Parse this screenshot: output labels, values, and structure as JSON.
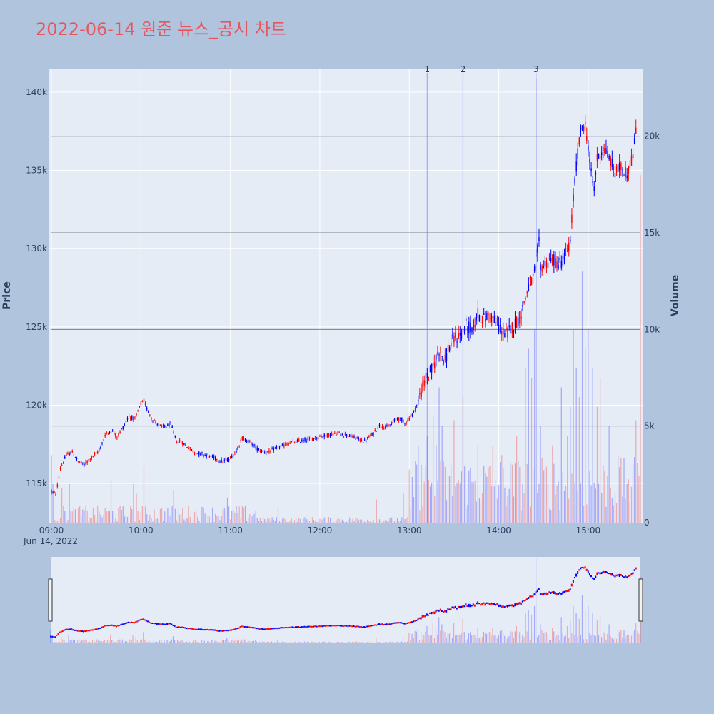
{
  "chart_data": {
    "type": "candlestick",
    "title": "2022-06-14 원준 뉴스_공시 차트",
    "date_label": "Jun 14, 2022",
    "ylabel": "Price",
    "y2label": "Volume",
    "ylim": [
      112500,
      141500
    ],
    "y2lim": [
      0,
      23500
    ],
    "y_ticks": [
      115000,
      120000,
      125000,
      130000,
      135000,
      140000
    ],
    "y_tick_labels": [
      "115k",
      "120k",
      "125k",
      "130k",
      "135k",
      "140k"
    ],
    "y2_ticks": [
      0,
      5000,
      10000,
      15000,
      20000
    ],
    "y2_tick_labels": [
      "0",
      "5k",
      "10k",
      "15k",
      "20k"
    ],
    "x_range_minutes": [
      0,
      395
    ],
    "x_ticks": [
      0,
      60,
      120,
      180,
      240,
      300,
      360
    ],
    "x_tick_labels": [
      "09:00",
      "10:00",
      "11:00",
      "12:00",
      "13:00",
      "14:00",
      "15:00"
    ],
    "horizontal_levels_volume": [
      5000,
      10000,
      15000,
      20000
    ],
    "increasing_color": "#ff0000",
    "decreasing_color": "#0000ff",
    "news_markers": [
      {
        "label": "1",
        "minute": 252
      },
      {
        "label": "2",
        "minute": 276
      },
      {
        "label": "3",
        "minute": 325
      }
    ],
    "price_path": [
      [
        0,
        114500
      ],
      [
        3,
        114300
      ],
      [
        6,
        116000
      ],
      [
        10,
        116800
      ],
      [
        14,
        117000
      ],
      [
        18,
        116400
      ],
      [
        22,
        116200
      ],
      [
        26,
        116600
      ],
      [
        30,
        116900
      ],
      [
        33,
        117300
      ],
      [
        36,
        118100
      ],
      [
        40,
        118400
      ],
      [
        44,
        118000
      ],
      [
        48,
        118600
      ],
      [
        52,
        119300
      ],
      [
        56,
        119100
      ],
      [
        60,
        120100
      ],
      [
        62,
        120300
      ],
      [
        64,
        119800
      ],
      [
        67,
        119200
      ],
      [
        70,
        118900
      ],
      [
        74,
        118600
      ],
      [
        78,
        118700
      ],
      [
        80,
        118800
      ],
      [
        84,
        117700
      ],
      [
        88,
        117600
      ],
      [
        92,
        117300
      ],
      [
        96,
        117000
      ],
      [
        100,
        116900
      ],
      [
        105,
        116800
      ],
      [
        110,
        116600
      ],
      [
        115,
        116400
      ],
      [
        120,
        116600
      ],
      [
        124,
        117100
      ],
      [
        128,
        117900
      ],
      [
        132,
        117700
      ],
      [
        136,
        117400
      ],
      [
        140,
        117100
      ],
      [
        146,
        117000
      ],
      [
        152,
        117300
      ],
      [
        160,
        117600
      ],
      [
        166,
        117700
      ],
      [
        172,
        117800
      ],
      [
        180,
        118000
      ],
      [
        186,
        118100
      ],
      [
        192,
        118200
      ],
      [
        198,
        118100
      ],
      [
        204,
        117900
      ],
      [
        210,
        117700
      ],
      [
        216,
        118200
      ],
      [
        220,
        118700
      ],
      [
        226,
        118600
      ],
      [
        232,
        119200
      ],
      [
        238,
        118900
      ],
      [
        242,
        119400
      ],
      [
        246,
        120200
      ],
      [
        248,
        120900
      ],
      [
        252,
        121800
      ],
      [
        256,
        122400
      ],
      [
        258,
        123000
      ],
      [
        260,
        123600
      ],
      [
        262,
        123200
      ],
      [
        264,
        122800
      ],
      [
        266,
        123600
      ],
      [
        270,
        124200
      ],
      [
        274,
        124500
      ],
      [
        276,
        124700
      ],
      [
        278,
        125100
      ],
      [
        282,
        124800
      ],
      [
        286,
        125800
      ],
      [
        290,
        125500
      ],
      [
        294,
        125800
      ],
      [
        298,
        125300
      ],
      [
        302,
        124800
      ],
      [
        305,
        124500
      ],
      [
        310,
        125100
      ],
      [
        314,
        125600
      ],
      [
        318,
        126900
      ],
      [
        320,
        127600
      ],
      [
        323,
        128000
      ],
      [
        326,
        129800
      ],
      [
        327,
        130300
      ],
      [
        328,
        128800
      ],
      [
        332,
        129100
      ],
      [
        336,
        129300
      ],
      [
        340,
        129000
      ],
      [
        344,
        129400
      ],
      [
        348,
        130400
      ],
      [
        350,
        133200
      ],
      [
        353,
        136200
      ],
      [
        356,
        137900
      ],
      [
        358,
        137800
      ],
      [
        360,
        136600
      ],
      [
        362,
        134700
      ],
      [
        364,
        133900
      ],
      [
        366,
        135700
      ],
      [
        368,
        136100
      ],
      [
        370,
        136500
      ],
      [
        374,
        135800
      ],
      [
        378,
        134900
      ],
      [
        382,
        135200
      ],
      [
        386,
        134800
      ],
      [
        390,
        136000
      ],
      [
        392,
        137400
      ]
    ],
    "volume_spikes": [
      [
        0,
        3500
      ],
      [
        1,
        2000
      ],
      [
        7,
        1800
      ],
      [
        12,
        2000
      ],
      [
        40,
        2200
      ],
      [
        55,
        2000
      ],
      [
        57,
        1500
      ],
      [
        62,
        2900
      ],
      [
        82,
        1700
      ],
      [
        118,
        1300
      ],
      [
        152,
        800
      ],
      [
        218,
        1200
      ],
      [
        236,
        1500
      ],
      [
        241,
        800
      ],
      [
        246,
        4000
      ],
      [
        248,
        3000
      ],
      [
        252,
        4500
      ],
      [
        256,
        5500
      ],
      [
        258,
        4000
      ],
      [
        260,
        7000
      ],
      [
        262,
        5000
      ],
      [
        270,
        5300
      ],
      [
        276,
        6500
      ],
      [
        286,
        4000
      ],
      [
        296,
        4000
      ],
      [
        302,
        3500
      ],
      [
        312,
        4500
      ],
      [
        318,
        8000
      ],
      [
        320,
        9000
      ],
      [
        322,
        7500
      ],
      [
        324,
        10000
      ],
      [
        325,
        23000
      ],
      [
        328,
        5000
      ],
      [
        336,
        4000
      ],
      [
        342,
        7000
      ],
      [
        346,
        4500
      ],
      [
        348,
        6000
      ],
      [
        350,
        10000
      ],
      [
        352,
        8000
      ],
      [
        354,
        6500
      ],
      [
        356,
        13000
      ],
      [
        358,
        9000
      ],
      [
        360,
        10000
      ],
      [
        363,
        8000
      ],
      [
        366,
        6000
      ],
      [
        368,
        7500
      ],
      [
        374,
        5000
      ],
      [
        380,
        3500
      ],
      [
        386,
        2000
      ],
      [
        390,
        3000
      ],
      [
        392,
        5300
      ],
      [
        395,
        18000
      ]
    ]
  }
}
